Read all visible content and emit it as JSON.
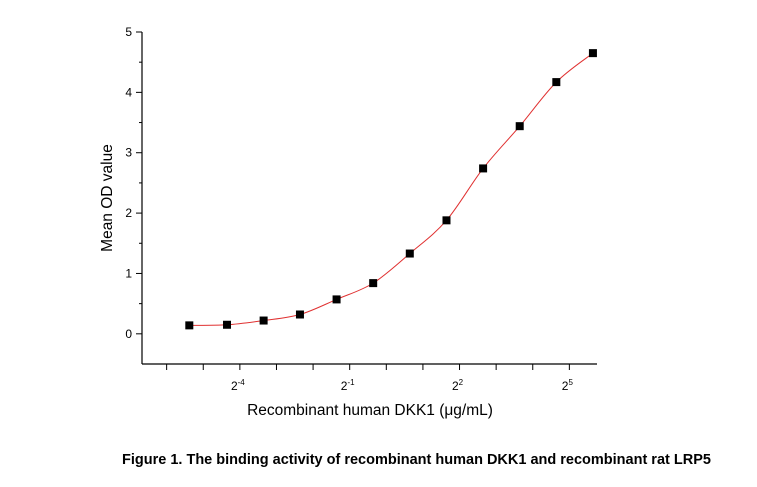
{
  "chart_data": {
    "type": "scatter",
    "title": "",
    "xlabel": "Recombinant human DKK1 (μg/mL)",
    "ylabel": "Mean OD value",
    "x_scale": "log2",
    "xlim": [
      0.0098,
      54
    ],
    "ylim": [
      -0.5,
      5
    ],
    "x_tick_labels": [
      {
        "base": "2",
        "exp": "-4",
        "value": 0.0625
      },
      {
        "base": "2",
        "exp": "-1",
        "value": 0.5
      },
      {
        "base": "2",
        "exp": "2",
        "value": 4
      },
      {
        "base": "2",
        "exp": "5",
        "value": 32
      }
    ],
    "y_ticks": [
      0,
      1,
      2,
      3,
      4,
      5
    ],
    "grid": false,
    "fit_line": true,
    "colors": {
      "points": "#000000",
      "fit": "#e03030"
    },
    "series": [
      {
        "x": [
          0.024,
          0.049,
          0.098,
          0.195,
          0.39,
          0.78,
          1.56,
          3.125,
          6.25,
          12.5,
          25,
          50
        ],
        "y": [
          0.14,
          0.15,
          0.22,
          0.32,
          0.57,
          0.84,
          1.33,
          1.88,
          2.74,
          3.44,
          4.17,
          4.65
        ]
      }
    ]
  },
  "caption": "Figure 1. The binding activity of recombinant human DKK1 and recombinant rat LRP5"
}
